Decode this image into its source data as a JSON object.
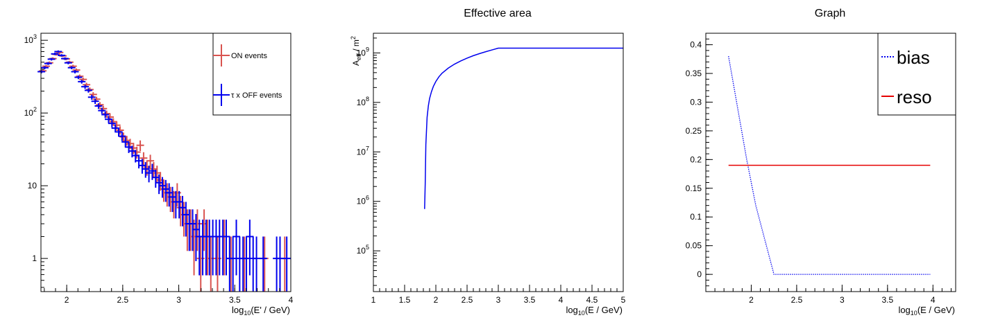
{
  "chart_data": [
    {
      "type": "scatter",
      "title": "",
      "xlabel": "log10(E' / GeV)",
      "ylabel": "",
      "xlim": [
        1.77,
        4.0
      ],
      "ylim": [
        0.35,
        1250
      ],
      "yscale": "log",
      "x_ticks": [
        "2",
        "2.5",
        "3",
        "3.5",
        "4"
      ],
      "y_ticks": [
        "1",
        "10",
        "10^2",
        "10^3"
      ],
      "legend_position": "top-right",
      "series": [
        {
          "name": "ON events",
          "color": "#d9534f",
          "points": [
            [
              1.78,
              380
            ],
            [
              1.81,
              440
            ],
            [
              1.84,
              490
            ],
            [
              1.87,
              560
            ],
            [
              1.9,
              640
            ],
            [
              1.93,
              680
            ],
            [
              1.96,
              610
            ],
            [
              1.99,
              555
            ],
            [
              2.02,
              500
            ],
            [
              2.05,
              440
            ],
            [
              2.08,
              390
            ],
            [
              2.11,
              320
            ],
            [
              2.14,
              290
            ],
            [
              2.17,
              245
            ],
            [
              2.2,
              210
            ],
            [
              2.23,
              180
            ],
            [
              2.26,
              155
            ],
            [
              2.29,
              130
            ],
            [
              2.32,
              115
            ],
            [
              2.35,
              98
            ],
            [
              2.38,
              88
            ],
            [
              2.41,
              76
            ],
            [
              2.44,
              68
            ],
            [
              2.47,
              58
            ],
            [
              2.5,
              47
            ],
            [
              2.53,
              42
            ],
            [
              2.56,
              38
            ],
            [
              2.59,
              33
            ],
            [
              2.62,
              29
            ],
            [
              2.65,
              36
            ],
            [
              2.68,
              24
            ],
            [
              2.71,
              18
            ],
            [
              2.74,
              22
            ],
            [
              2.77,
              17
            ],
            [
              2.8,
              15
            ],
            [
              2.83,
              12
            ],
            [
              2.86,
              9
            ],
            [
              2.89,
              8
            ],
            [
              2.92,
              7
            ],
            [
              2.95,
              6
            ],
            [
              2.98,
              8
            ],
            [
              3.01,
              5
            ],
            [
              3.04,
              4
            ],
            [
              3.07,
              3
            ],
            [
              3.1,
              3
            ],
            [
              3.13,
              2
            ],
            [
              3.16,
              3
            ],
            [
              3.19,
              1
            ],
            [
              3.22,
              3
            ],
            [
              3.25,
              2
            ],
            [
              3.28,
              1
            ],
            [
              3.34,
              1
            ],
            [
              3.4,
              2
            ],
            [
              3.46,
              1
            ],
            [
              3.58,
              1
            ],
            [
              3.76,
              1
            ],
            [
              3.94,
              1
            ]
          ]
        },
        {
          "name": "τ x OFF events",
          "color": "#0000ee",
          "points": [
            [
              1.78,
              370
            ],
            [
              1.81,
              420
            ],
            [
              1.84,
              480
            ],
            [
              1.87,
              550
            ],
            [
              1.9,
              650
            ],
            [
              1.93,
              700
            ],
            [
              1.96,
              620
            ],
            [
              1.99,
              560
            ],
            [
              2.02,
              490
            ],
            [
              2.05,
              420
            ],
            [
              2.08,
              370
            ],
            [
              2.11,
              310
            ],
            [
              2.14,
              270
            ],
            [
              2.17,
              230
            ],
            [
              2.2,
              205
            ],
            [
              2.23,
              165
            ],
            [
              2.26,
              145
            ],
            [
              2.29,
              125
            ],
            [
              2.32,
              108
            ],
            [
              2.35,
              95
            ],
            [
              2.38,
              82
            ],
            [
              2.41,
              72
            ],
            [
              2.44,
              62
            ],
            [
              2.47,
              55
            ],
            [
              2.5,
              48
            ],
            [
              2.53,
              40
            ],
            [
              2.56,
              34
            ],
            [
              2.59,
              30
            ],
            [
              2.62,
              26
            ],
            [
              2.65,
              22
            ],
            [
              2.68,
              19
            ],
            [
              2.71,
              17
            ],
            [
              2.74,
              15
            ],
            [
              2.77,
              16
            ],
            [
              2.8,
              13
            ],
            [
              2.83,
              11
            ],
            [
              2.86,
              10
            ],
            [
              2.89,
              9
            ],
            [
              2.92,
              8
            ],
            [
              2.95,
              7
            ],
            [
              2.98,
              6
            ],
            [
              3.01,
              6
            ],
            [
              3.04,
              5
            ],
            [
              3.07,
              4
            ],
            [
              3.1,
              3
            ],
            [
              3.13,
              3
            ],
            [
              3.16,
              2.5
            ],
            [
              3.19,
              2
            ],
            [
              3.22,
              2
            ],
            [
              3.25,
              2
            ],
            [
              3.28,
              2
            ],
            [
              3.31,
              2
            ],
            [
              3.34,
              2
            ],
            [
              3.37,
              2
            ],
            [
              3.4,
              2
            ],
            [
              3.43,
              2
            ],
            [
              3.46,
              1
            ],
            [
              3.49,
              1
            ],
            [
              3.52,
              2
            ],
            [
              3.55,
              1
            ],
            [
              3.58,
              1
            ],
            [
              3.61,
              1
            ],
            [
              3.64,
              2
            ],
            [
              3.67,
              1
            ],
            [
              3.7,
              1
            ],
            [
              3.76,
              1
            ],
            [
              3.88,
              1
            ],
            [
              3.91,
              1
            ],
            [
              3.97,
              1
            ]
          ]
        }
      ]
    },
    {
      "type": "line",
      "title": "Effective area",
      "xlabel": "log10(E / GeV)",
      "ylabel": "A_eff / m^2",
      "xlim": [
        1.0,
        5.0
      ],
      "ylim": [
        15000,
        2500000000
      ],
      "yscale": "log",
      "x_ticks": [
        "1",
        "1.5",
        "2",
        "2.5",
        "3",
        "3.5",
        "4",
        "4.5",
        "5"
      ],
      "y_ticks": [
        "10^5",
        "10^6",
        "10^7",
        "10^8",
        "10^9"
      ],
      "series": [
        {
          "name": "",
          "color": "#0000ee",
          "x": [
            1.82,
            1.83,
            1.84,
            1.86,
            1.88,
            1.9,
            1.93,
            1.96,
            2.0,
            2.05,
            2.1,
            2.2,
            2.3,
            2.4,
            2.5,
            2.6,
            2.7,
            2.8,
            2.9,
            3.0,
            3.5,
            4.0,
            4.5,
            5.0
          ],
          "y": [
            700000,
            2300000,
            14000000,
            50000000,
            85000000,
            120000000,
            165000000,
            210000000,
            265000000,
            330000000,
            390000000,
            495000000,
            595000000,
            690000000,
            785000000,
            880000000,
            970000000,
            1060000000,
            1150000000,
            1250000000,
            1250000000,
            1250000000,
            1250000000,
            1250000000
          ]
        }
      ]
    },
    {
      "type": "line",
      "title": "Graph",
      "xlabel": "log10(E / GeV)",
      "ylabel": "",
      "xlim": [
        1.5,
        4.25
      ],
      "ylim": [
        -0.03,
        0.42
      ],
      "x_ticks": [
        "2",
        "2.5",
        "3",
        "3.5",
        "4"
      ],
      "y_ticks": [
        "0",
        "0.05",
        "0.1",
        "0.15",
        "0.2",
        "0.25",
        "0.3",
        "0.35",
        "0.4"
      ],
      "legend_position": "top-right",
      "series": [
        {
          "name": "bias",
          "color": "#0000ee",
          "style": "dotted",
          "x": [
            1.75,
            1.95,
            2.05,
            2.2,
            2.25,
            2.5,
            3.0,
            3.5,
            3.97
          ],
          "y": [
            0.38,
            0.2,
            0.12,
            0.03,
            0.0,
            0.0,
            0.0,
            0.0,
            0.0
          ]
        },
        {
          "name": "reso",
          "color": "#e60000",
          "style": "solid",
          "x": [
            1.75,
            3.97
          ],
          "y": [
            0.19,
            0.19
          ]
        }
      ]
    }
  ]
}
